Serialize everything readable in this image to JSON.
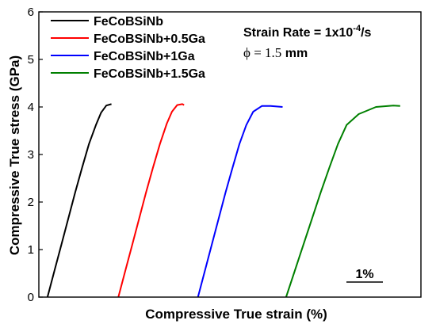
{
  "chart_data": {
    "type": "line",
    "ylabel": "Compressive True stress (GPa)",
    "xlabel": "Compressive True strain (%)",
    "ylim": [
      0,
      6
    ],
    "yticks": [
      "0",
      "1",
      "2",
      "3",
      "4",
      "5",
      "6"
    ],
    "x_tick_labels": false,
    "legend_position": "top-left",
    "annotations": {
      "strain_rate_prefix": "Strain Rate = 1x10",
      "strain_rate_exp": "-4",
      "strain_rate_suffix": "/s",
      "diameter_symbol": "ϕ = 1.5",
      "diameter_unit": " mm",
      "scale_bar_label": "1%"
    },
    "series": [
      {
        "name": "FeCoBSiNb",
        "color": "#000000",
        "points": [
          [
            0.0,
            0.0
          ],
          [
            0.2,
            0.55
          ],
          [
            0.4,
            1.1
          ],
          [
            0.6,
            1.65
          ],
          [
            0.8,
            2.2
          ],
          [
            1.0,
            2.72
          ],
          [
            1.2,
            3.22
          ],
          [
            1.4,
            3.62
          ],
          [
            1.55,
            3.88
          ],
          [
            1.7,
            4.03
          ],
          [
            1.85,
            4.06
          ]
        ]
      },
      {
        "name": "FeCoBSiNb+0.5Ga",
        "color": "#ff0000",
        "points": [
          [
            2.05,
            0.0
          ],
          [
            2.25,
            0.55
          ],
          [
            2.45,
            1.1
          ],
          [
            2.65,
            1.65
          ],
          [
            2.85,
            2.2
          ],
          [
            3.05,
            2.72
          ],
          [
            3.25,
            3.22
          ],
          [
            3.45,
            3.65
          ],
          [
            3.6,
            3.9
          ],
          [
            3.75,
            4.04
          ],
          [
            3.9,
            4.06
          ],
          [
            3.95,
            4.04
          ]
        ]
      },
      {
        "name": "FeCoBSiNb+1Ga",
        "color": "#0000ff",
        "points": [
          [
            4.35,
            0.0
          ],
          [
            4.55,
            0.55
          ],
          [
            4.75,
            1.1
          ],
          [
            4.95,
            1.65
          ],
          [
            5.15,
            2.2
          ],
          [
            5.35,
            2.72
          ],
          [
            5.55,
            3.22
          ],
          [
            5.75,
            3.62
          ],
          [
            5.95,
            3.9
          ],
          [
            6.2,
            4.02
          ],
          [
            6.45,
            4.02
          ],
          [
            6.8,
            4.0
          ]
        ]
      },
      {
        "name": "FeCoBSiNb+1.5Ga",
        "color": "#008000",
        "points": [
          [
            6.9,
            0.0
          ],
          [
            7.15,
            0.55
          ],
          [
            7.4,
            1.1
          ],
          [
            7.65,
            1.65
          ],
          [
            7.9,
            2.2
          ],
          [
            8.15,
            2.72
          ],
          [
            8.4,
            3.22
          ],
          [
            8.65,
            3.62
          ],
          [
            9.0,
            3.85
          ],
          [
            9.5,
            4.0
          ],
          [
            10.0,
            4.03
          ],
          [
            10.2,
            4.02
          ]
        ]
      }
    ]
  }
}
